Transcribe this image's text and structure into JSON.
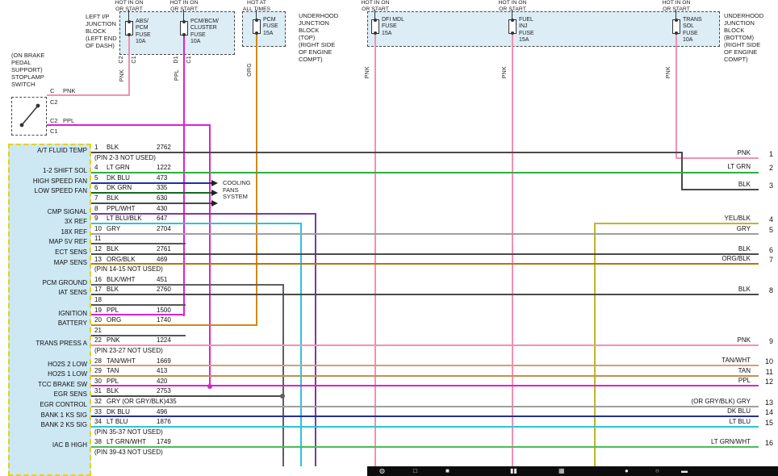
{
  "colors": {
    "blk": "#4a4a4a",
    "pnk": "#f290b6",
    "ppl": "#dd22cc",
    "org": "#cf8a12",
    "ltgrn": "#2fae3e",
    "dkblu": "#23309d",
    "dkgrn": "#14691d",
    "pplwht": "#7a3d95",
    "ltblu": "#2cc4d8",
    "gry": "#9f9f9f",
    "orgblk": "#b4770e",
    "blkwht": "#5f5f5f",
    "tanwht": "#cfa271",
    "tan": "#c1914f",
    "yelblk": "#bfb728",
    "ltgrnwht": "#49bd55",
    "stub": "#555555",
    "connector_fill": "#cde7f3",
    "connector_border": "#e8d400",
    "junction_fill": "#dcedf6"
  },
  "power_labels": [
    "HOT IN ON\nOR START",
    "HOT IN ON\nOR START",
    "HOT AT\nALL TIMES",
    "HOT IN ON\nOR START",
    "HOT IN ON\nOR START",
    "HOT IN ON\nOR START"
  ],
  "junction_blocks": {
    "ip": {
      "label": "LEFT I/P\nJUNCTION\nBLOCK\n(LEFT END\nOF DASH)"
    },
    "underhood_top": {
      "label": "UNDERHOOD\nJUNCTION\nBLOCK\n(TOP)\n(RIGHT SIDE\nOF ENGINE\nCOMPT)"
    },
    "underhood_bottom": {
      "label": "UNDERHOOD\nJUNCTION\nBLOCK\n(BOTTOM)\n(RIGHT SIDE\nOF ENGINE\nCOMPT)"
    }
  },
  "fuses": [
    {
      "name": "ABS/\nPCM\nFUSE\n10A"
    },
    {
      "name": "PCM/BCM/\nCLUSTER\nFUSE\n10A"
    },
    {
      "name": "PCM\nFUSE\n15A"
    },
    {
      "name": "DFI MDL\nFUSE\n15A"
    },
    {
      "name": "FUEL\nINJ\nFUSE\n15A"
    },
    {
      "name": "TRANS\nSOL\nFUSE\n10A"
    }
  ],
  "stoplamp": {
    "label": "(ON BRAKE\nPEDAL\nSUPPORT)\nSTOPLAMP\nSWITCH",
    "terminals": [
      "C",
      "PNK",
      "C2",
      "C2",
      "PPL",
      "C1"
    ]
  },
  "rotated_labels": [
    "C2",
    "C1",
    "D1",
    "C1",
    "PNK",
    "PPL",
    "ORG",
    "PNK",
    "PNK",
    "PNK"
  ],
  "cooling": {
    "label": "COOLING\nFANS\nSYSTEM"
  },
  "connector": {
    "functions": [
      {
        "text": "A/T FLUID TEMP",
        "row": 0
      },
      {
        "text": "1-2 SHIFT SOL",
        "row": 2
      },
      {
        "text": "HIGH SPEED FAN",
        "row": 3
      },
      {
        "text": "LOW SPEED FAN",
        "row": 4
      },
      {
        "text": "CMP SIGNAL",
        "row": 6
      },
      {
        "text": "3X REF",
        "row": 7
      },
      {
        "text": "18X REF",
        "row": 8
      },
      {
        "text": "MAP 5V REF",
        "row": 9
      },
      {
        "text": "ECT SENS",
        "row": 10
      },
      {
        "text": "MAP SENS",
        "row": 11
      },
      {
        "text": "PCM GROUND",
        "row": 13
      },
      {
        "text": "IAT SENS",
        "row": 14
      },
      {
        "text": "IGNITION",
        "row": 16
      },
      {
        "text": "BATTERY",
        "row": 17
      },
      {
        "text": "TRANS PRESS A",
        "row": 19
      },
      {
        "text": "HO2S 2 LOW",
        "row": 21
      },
      {
        "text": "HO2S 1 LOW",
        "row": 22
      },
      {
        "text": "TCC BRAKE SW",
        "row": 23
      },
      {
        "text": "EGR SENS",
        "row": 24
      },
      {
        "text": "EGR CONTROL",
        "row": 25
      },
      {
        "text": "BANK 1 KS SIG",
        "row": 26
      },
      {
        "text": "BANK 2 KS SIG",
        "row": 27
      },
      {
        "text": "IAC B HIGH",
        "row": 29
      }
    ],
    "rows": [
      {
        "pin": "1",
        "color": "BLK",
        "circuit": "2762"
      },
      {
        "note": "(PIN 2-3 NOT USED)"
      },
      {
        "pin": "4",
        "color": "LT GRN",
        "circuit": "1222"
      },
      {
        "pin": "5",
        "color": "DK BLU",
        "circuit": "473"
      },
      {
        "pin": "6",
        "color": "DK GRN",
        "circuit": "335"
      },
      {
        "pin": "7",
        "color": "BLK",
        "circuit": "630"
      },
      {
        "pin": "8",
        "color": "PPL/WHT",
        "circuit": "430"
      },
      {
        "pin": "9",
        "color": "LT BLU/BLK",
        "circuit": "647"
      },
      {
        "pin": "10",
        "color": "GRY",
        "circuit": "2704"
      },
      {
        "pin": "11"
      },
      {
        "pin": "12",
        "color": "BLK",
        "circuit": "2761"
      },
      {
        "pin": "13",
        "color": "ORG/BLK",
        "circuit": "469"
      },
      {
        "note": "(PIN 14-15 NOT USED)"
      },
      {
        "pin": "16",
        "color": "BLK/WHT",
        "circuit": "451"
      },
      {
        "pin": "17",
        "color": "BLK",
        "circuit": "2760"
      },
      {
        "pin": "18"
      },
      {
        "pin": "19",
        "color": "PPL",
        "circuit": "1500"
      },
      {
        "pin": "20",
        "color": "ORG",
        "circuit": "1740"
      },
      {
        "pin": "21"
      },
      {
        "pin": "22",
        "color": "PNK",
        "circuit": "1224"
      },
      {
        "note": "(PIN 23-27 NOT USED)"
      },
      {
        "pin": "28",
        "color": "TAN/WHT",
        "circuit": "1669"
      },
      {
        "pin": "29",
        "color": "TAN",
        "circuit": "413"
      },
      {
        "pin": "30",
        "color": "PPL",
        "circuit": "420"
      },
      {
        "pin": "31",
        "color": "BLK",
        "circuit": "2753"
      },
      {
        "pin": "32",
        "color": "GRY (OR GRY/BLK)",
        "circuit": "435"
      },
      {
        "pin": "33",
        "color": "DK BLU",
        "circuit": "496"
      },
      {
        "pin": "34",
        "color": "LT BLU",
        "circuit": "1876"
      },
      {
        "note": "(PIN 35-37 NOT USED)"
      },
      {
        "pin": "38",
        "color": "LT GRN/WHT",
        "circuit": "1749"
      },
      {
        "note": "(PIN 39-43 NOT USED)"
      }
    ]
  },
  "right_refs": [
    {
      "num": "1",
      "color": "PNK"
    },
    {
      "num": "2",
      "color": "LT GRN"
    },
    {
      "num": "3",
      "color": "BLK"
    },
    {
      "num": "4",
      "color": "YEL/BLK"
    },
    {
      "num": "5",
      "color": "GRY"
    },
    {
      "num": "6",
      "color": "BLK"
    },
    {
      "num": "7",
      "color": "ORG/BLK"
    },
    {
      "num": "8",
      "color": "BLK"
    },
    {
      "num": "9",
      "color": "PNK"
    },
    {
      "num": "10",
      "color": "TAN/WHT"
    },
    {
      "num": "11",
      "color": "TAN"
    },
    {
      "num": "12",
      "color": "PPL"
    },
    {
      "num": "13",
      "color": "(OR GRY/BLK)  GRY"
    },
    {
      "num": "14",
      "color": "DK BLU"
    },
    {
      "num": "15",
      "color": "LT BLU"
    },
    {
      "num": "16",
      "color": "LT GRN/WHT"
    }
  ],
  "taskbar": {
    "icons": [
      {
        "name": "taskbar-icon-1",
        "glyph": "◍"
      },
      {
        "name": "taskbar-icon-2",
        "glyph": "□"
      },
      {
        "name": "taskbar-icon-3",
        "glyph": "■"
      },
      {
        "name": "taskbar-icon-4",
        "glyph": "▮▮"
      },
      {
        "name": "taskbar-icon-5",
        "glyph": "▦"
      },
      {
        "name": "taskbar-icon-6",
        "glyph": "●"
      },
      {
        "name": "taskbar-icon-7",
        "glyph": "○"
      },
      {
        "name": "taskbar-icon-8",
        "glyph": "▬"
      }
    ]
  }
}
